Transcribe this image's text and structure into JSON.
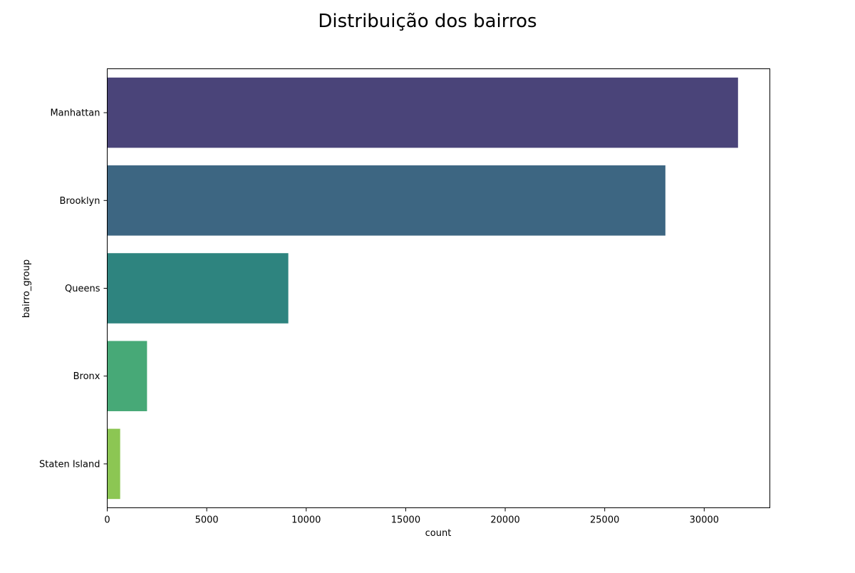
{
  "chart_data": {
    "type": "bar",
    "orientation": "horizontal",
    "title": "Distribuição dos bairros",
    "xlabel": "count",
    "ylabel": "bairro_group",
    "categories": [
      "Manhattan",
      "Brooklyn",
      "Queens",
      "Bronx",
      "Staten Island"
    ],
    "values": [
      31700,
      28050,
      9100,
      2000,
      650
    ],
    "colors": [
      "#4a4479",
      "#3d6682",
      "#2e847f",
      "#47a977",
      "#8cc653"
    ],
    "xlim": [
      0,
      33300
    ],
    "xticks": [
      0,
      5000,
      10000,
      15000,
      20000,
      25000,
      30000
    ],
    "grid": false,
    "legend": "none"
  }
}
